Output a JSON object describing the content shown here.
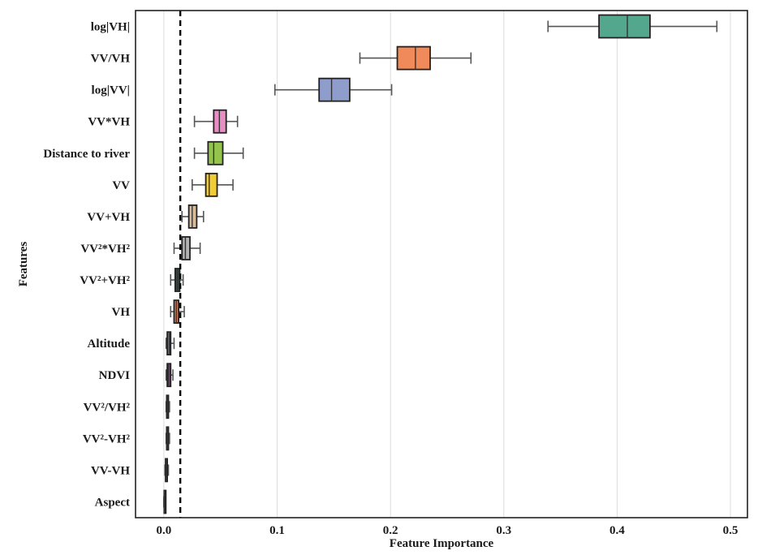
{
  "chart_data": {
    "type": "box",
    "orientation": "horizontal",
    "xlabel": "Feature Importance",
    "ylabel": "Features",
    "xlim": [
      -0.025,
      0.515
    ],
    "xticks": [
      0.0,
      0.1,
      0.2,
      0.3,
      0.4,
      0.5
    ],
    "xtick_labels": [
      "0.0",
      "0.1",
      "0.2",
      "0.3",
      "0.4",
      "0.5"
    ],
    "threshold_line": {
      "x": 0.0145,
      "style": "dashed"
    },
    "grid": "vertical",
    "features": [
      {
        "label": "log|VH|",
        "min": 0.339,
        "q1": 0.384,
        "median": 0.409,
        "q3": 0.429,
        "max": 0.488,
        "color": "#52a78c"
      },
      {
        "label": "VV/VH",
        "min": 0.173,
        "q1": 0.206,
        "median": 0.222,
        "q3": 0.235,
        "max": 0.271,
        "color": "#f08a5a"
      },
      {
        "label": "log|VV|",
        "min": 0.098,
        "q1": 0.137,
        "median": 0.148,
        "q3": 0.164,
        "max": 0.201,
        "color": "#8e9dcb"
      },
      {
        "label": "VV*VH",
        "min": 0.027,
        "q1": 0.044,
        "median": 0.049,
        "q3": 0.055,
        "max": 0.065,
        "color": "#e88ec4"
      },
      {
        "label": "Distance to river",
        "min": 0.027,
        "q1": 0.039,
        "median": 0.044,
        "q3": 0.052,
        "max": 0.07,
        "color": "#95c44d"
      },
      {
        "label": "VV",
        "min": 0.025,
        "q1": 0.037,
        "median": 0.04,
        "q3": 0.047,
        "max": 0.061,
        "color": "#f2cc33"
      },
      {
        "label": "VV+VH",
        "min": 0.016,
        "q1": 0.022,
        "median": 0.025,
        "q3": 0.029,
        "max": 0.035,
        "color": "#d8bc9a"
      },
      {
        "label": "VV²*VH²",
        "min": 0.009,
        "q1": 0.016,
        "median": 0.019,
        "q3": 0.023,
        "max": 0.032,
        "color": "#b3b3b3"
      },
      {
        "label": "VV²+VH²",
        "min": 0.006,
        "q1": 0.01,
        "median": 0.012,
        "q3": 0.014,
        "max": 0.017,
        "color": "#2e4f45"
      },
      {
        "label": "VH",
        "min": 0.006,
        "q1": 0.009,
        "median": 0.011,
        "q3": 0.013,
        "max": 0.018,
        "color": "#d58668"
      },
      {
        "label": "Altitude",
        "min": 0.002,
        "q1": 0.003,
        "median": 0.005,
        "q3": 0.006,
        "max": 0.009,
        "color": "#5e6e88"
      },
      {
        "label": "NDVI",
        "min": 0.002,
        "q1": 0.003,
        "median": 0.004,
        "q3": 0.006,
        "max": 0.008,
        "color": "#6d4c6b"
      },
      {
        "label": "VV²/VH²",
        "min": 0.002,
        "q1": 0.0025,
        "median": 0.003,
        "q3": 0.004,
        "max": 0.005,
        "color": "#4c6a3f"
      },
      {
        "label": "VV²-VH²",
        "min": 0.002,
        "q1": 0.0025,
        "median": 0.003,
        "q3": 0.004,
        "max": 0.005,
        "color": "#6b5a35"
      },
      {
        "label": "VV-VH",
        "min": 0.001,
        "q1": 0.0015,
        "median": 0.002,
        "q3": 0.003,
        "max": 0.004,
        "color": "#5a4a40"
      },
      {
        "label": "Aspect",
        "min": 0.0,
        "q1": 0.0003,
        "median": 0.0006,
        "q3": 0.0009,
        "max": 0.0012,
        "color": "#666666"
      }
    ]
  }
}
